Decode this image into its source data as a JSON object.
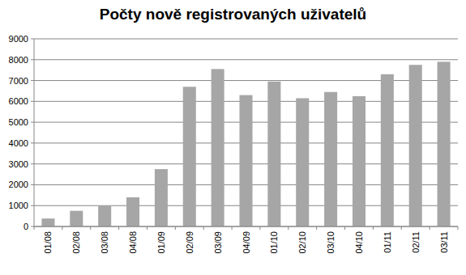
{
  "chart_data": {
    "type": "bar",
    "title": "Počty nově registrovaných uživatelů",
    "categories": [
      "01/08",
      "02/08",
      "03/08",
      "04/08",
      "01/09",
      "02/09",
      "03/09",
      "04/09",
      "01/10",
      "02/10",
      "03/10",
      "04/10",
      "01/11",
      "02/11",
      "03/11"
    ],
    "values": [
      380,
      750,
      1000,
      1400,
      2750,
      6700,
      7550,
      6300,
      6950,
      6150,
      6450,
      6250,
      7300,
      7750,
      7900
    ],
    "color": "#a6a6a6",
    "ylim": [
      0,
      9000
    ],
    "yticks": [
      0,
      1000,
      2000,
      3000,
      4000,
      5000,
      6000,
      7000,
      8000,
      9000
    ],
    "grid": true
  }
}
